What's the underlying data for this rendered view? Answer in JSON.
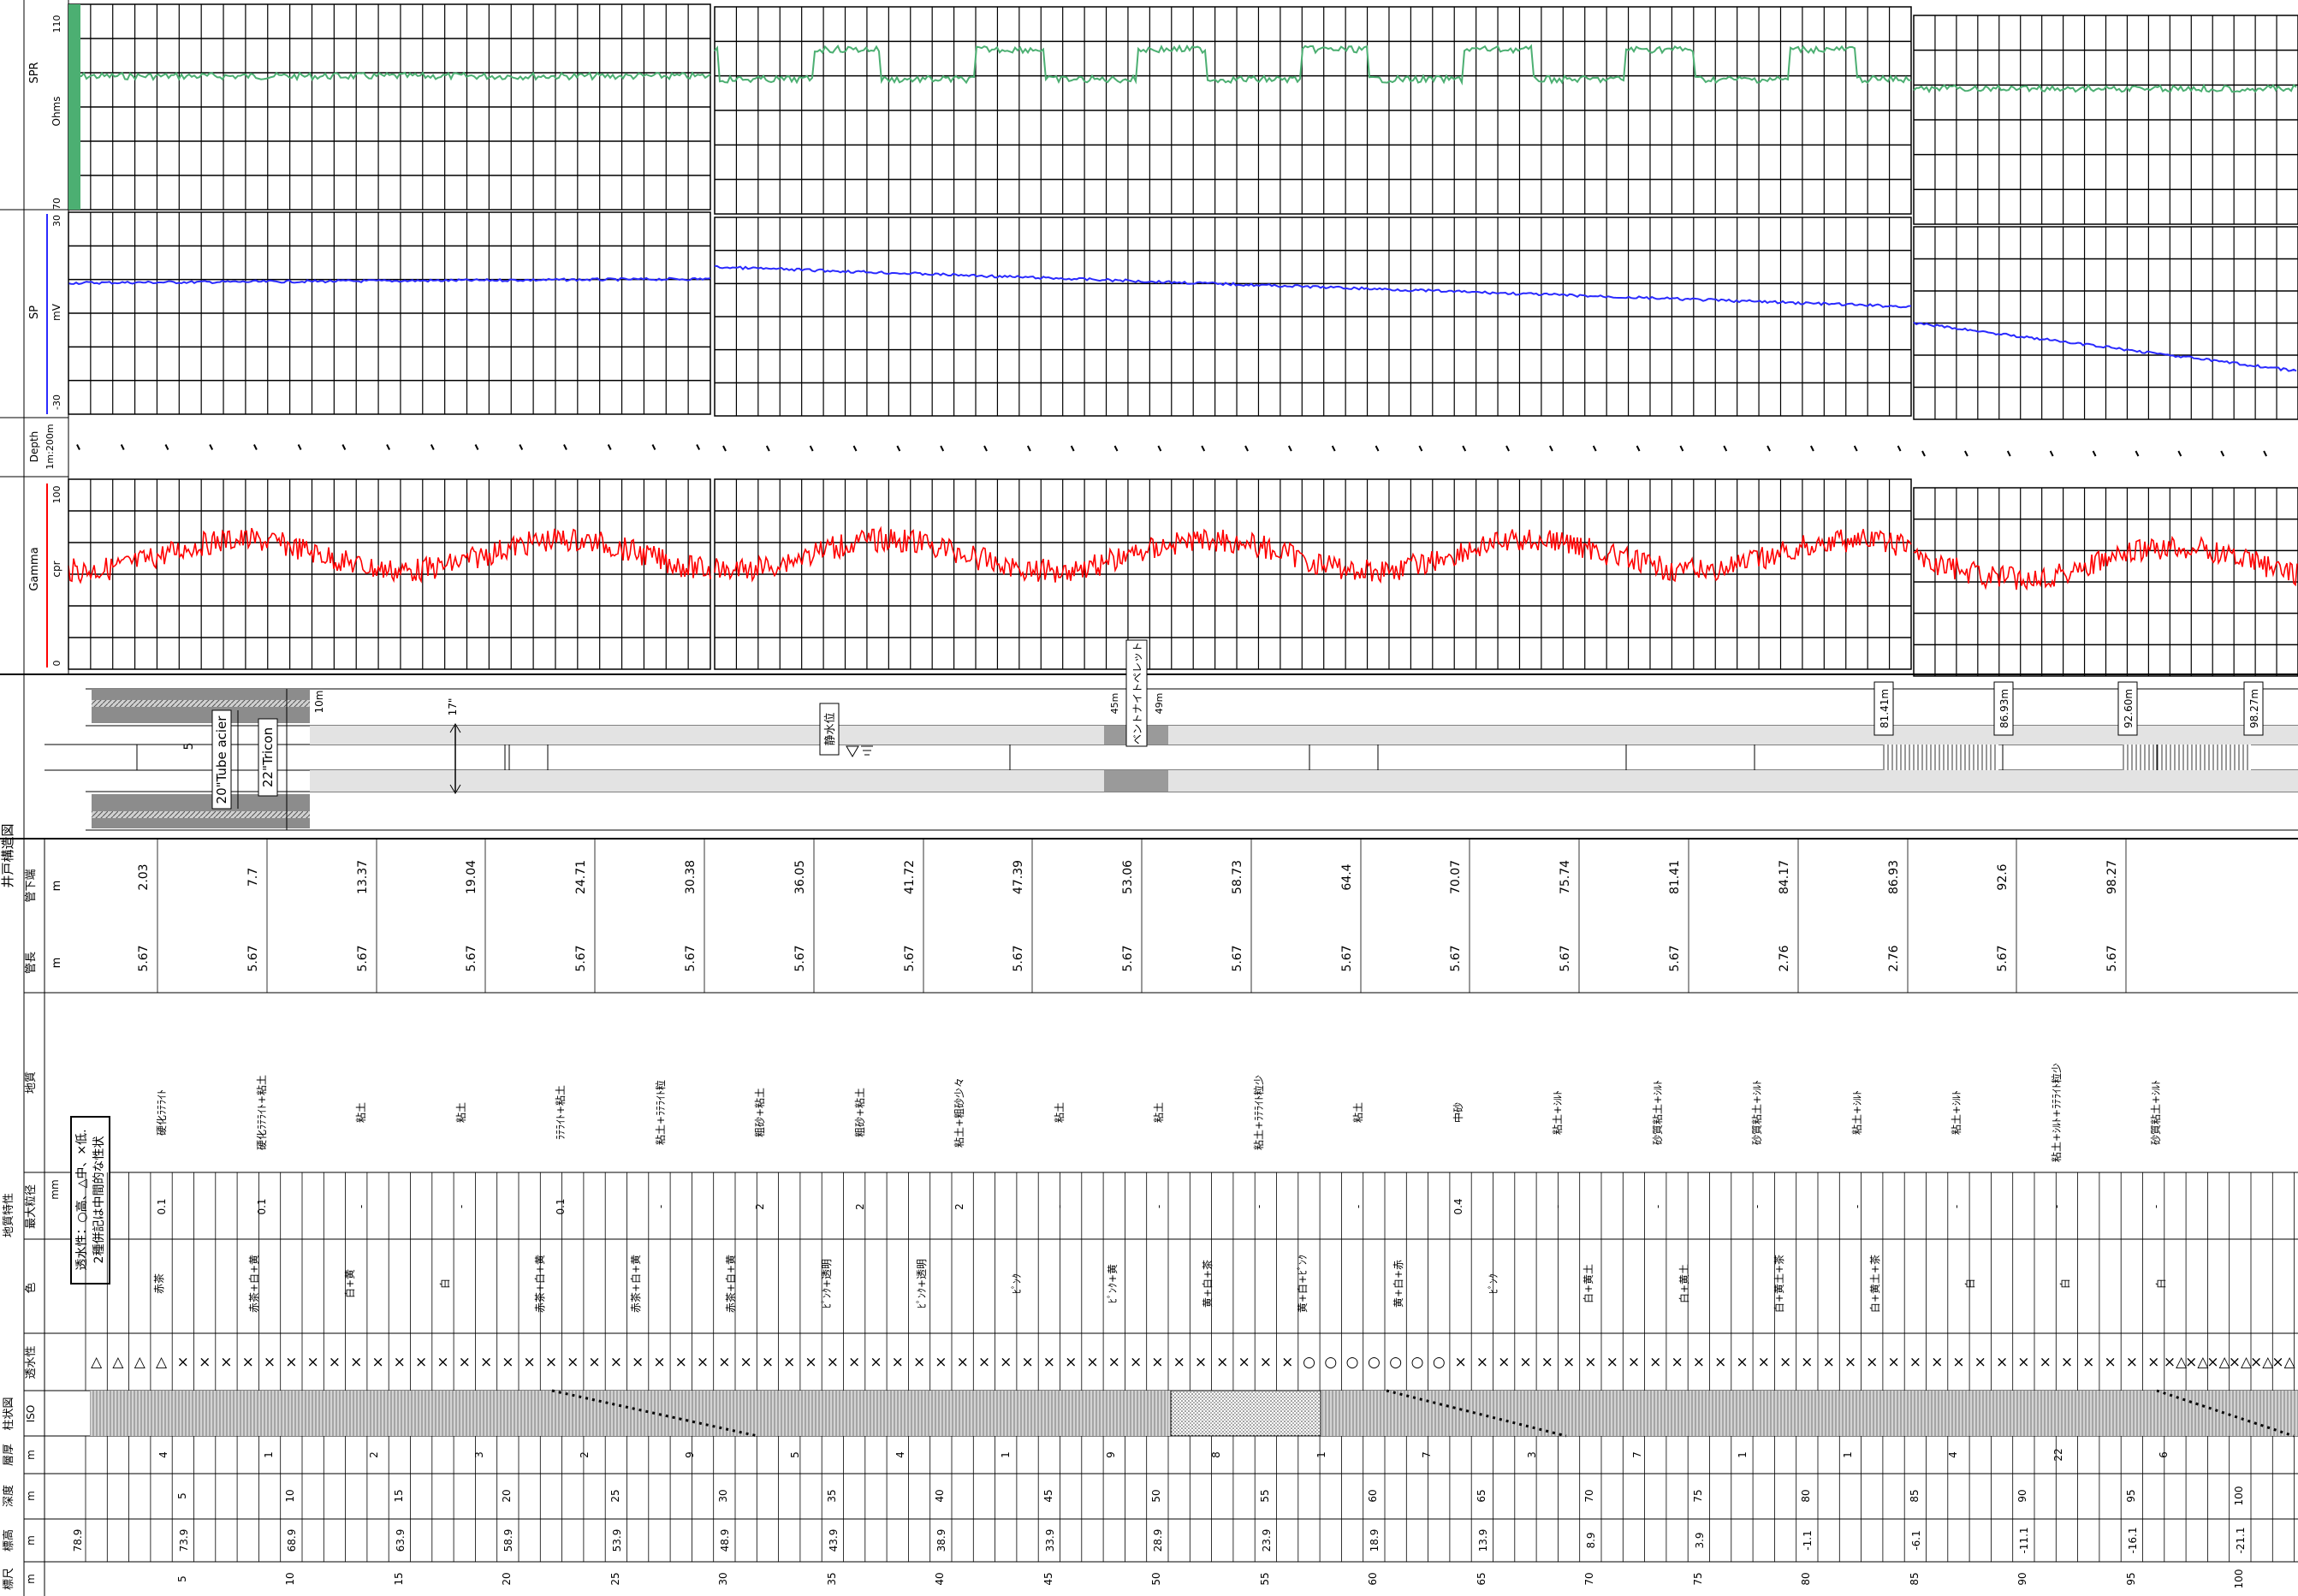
{
  "log": {
    "tracks": {
      "spr": {
        "name": "SPR",
        "unit": "Ohms",
        "max": "110",
        "min": "70"
      },
      "sp": {
        "name": "SP",
        "unit": "mV",
        "max": "30",
        "min": "-30"
      },
      "depth": {
        "name": "Depth",
        "unit": "1m:200m"
      },
      "gamma": {
        "name": "Gamma",
        "unit": "cpr",
        "max": "100",
        "min": "0"
      }
    },
    "well_structure_title": "井戸構造図",
    "table_titles": {
      "pipe_bottom": "管下端",
      "pipe_length": "管長",
      "geology_characteristics": "地質特性",
      "geology": "地質",
      "max_grain": "最大粒径",
      "color": "色",
      "permeability": "透水性",
      "column": "柱状図",
      "layer_thickness": "層厚",
      "depth": "深度",
      "elevation": "標高",
      "scale": "標尺"
    },
    "units": {
      "m": "m",
      "mm": "mm",
      "iso": "ISO"
    },
    "legend_box": [
      "透水性：○高、△中、×低.",
      "2種併記は中間的な性状"
    ],
    "structure_labels": {
      "casing": "20\"Tube acier",
      "bit": "22\"Tricon",
      "diameter": "17\"",
      "depth_10m": "10m",
      "five": "5",
      "static_water": "静水位",
      "bentonite": "ベントナイトペレット",
      "depth_45m": "45m",
      "depth_49m": "49m",
      "screens": [
        "81.41m",
        "86.93m",
        "92.60m",
        "98.27m"
      ]
    },
    "pipe_bottoms": [
      "2.03",
      "7.7",
      "13.37",
      "19.04",
      "24.71",
      "30.38",
      "36.05",
      "41.72",
      "47.39",
      "53.06",
      "58.73",
      "64.4",
      "70.07",
      "75.74",
      "81.41",
      "84.17",
      "86.93",
      "92.6",
      "98.27"
    ],
    "pipe_lengths": [
      "5.67",
      "5.67",
      "5.67",
      "5.67",
      "5.67",
      "5.67",
      "5.67",
      "5.67",
      "5.67",
      "5.67",
      "5.67",
      "5.67",
      "5.67",
      "5.67",
      "5.67",
      "2.76",
      "2.76",
      "5.67",
      "5.67"
    ],
    "geology_entries": [
      "硬化ﾗﾃﾗｲﾄ",
      "硬化ﾗﾃﾗｲﾄ+粘土",
      "粘土",
      "粘土",
      "ﾗﾃﾗｲﾄ+粘土",
      "粘土+ﾗﾃﾗｲﾄ粒",
      "粗砂+粘土",
      "粗砂+粘土",
      "粘土+粗砂少々",
      "粘土",
      "粘土",
      "粘土+ﾗﾃﾗｲﾄ粒少",
      "粘土",
      "中砂",
      "粘土+ｼﾙﾄ",
      "砂質粘土+ｼﾙﾄ",
      "砂質粘土+ｼﾙﾄ",
      "粘土+ｼﾙﾄ",
      "粘土+ｼﾙﾄ",
      "粘土+ｼﾙﾄ+ﾗﾃﾗｲﾄ粒少",
      "砂質粘土+ｼﾙﾄ"
    ],
    "grain_entries": [
      "0.1",
      "0.1",
      "-",
      "-",
      "0.1",
      "-",
      "2",
      "2",
      "2",
      "-",
      "-",
      "-",
      "-",
      "0.4",
      "-",
      "-",
      "-",
      "-",
      "-",
      "-",
      "-"
    ],
    "color_entries": [
      "赤茶",
      "赤茶+白+黄",
      "白+黄",
      "白",
      "赤茶+白+黄",
      "赤茶+白+黄",
      "赤茶+白+黄",
      "ﾋﾟﾝｸ+透明",
      "ﾋﾟﾝｸ+透明",
      "ﾋﾟﾝｸ",
      "ﾋﾟﾝｸ+黄",
      "黄+白+茶",
      "黄+白+ﾋﾟﾝｸ",
      "黄+白+赤",
      "ﾋﾟﾝｸ",
      "白+黄土",
      "白+黄土",
      "白+黄土+茶",
      "白+黄土+茶",
      "白",
      "白",
      "白"
    ],
    "perm_symbols": [
      "△",
      "△",
      "△",
      "△",
      "×",
      "○",
      "×△"
    ],
    "layer_thickness": [
      "4",
      "1",
      "2",
      "3",
      "2",
      "9",
      "5",
      "4",
      "1",
      "9",
      "8",
      "1",
      "7",
      "3",
      "7",
      "1",
      "1",
      "4",
      "22",
      "6"
    ],
    "depth_ticks": [
      "5",
      "10",
      "15",
      "20",
      "25",
      "30",
      "35",
      "40",
      "45",
      "50",
      "55",
      "60",
      "65",
      "70",
      "75",
      "80",
      "85",
      "90",
      "95",
      "100"
    ],
    "elevations": [
      "78.9",
      "73.9",
      "68.9",
      "63.9",
      "58.9",
      "53.9",
      "48.9",
      "43.9",
      "38.9",
      "33.9",
      "28.9",
      "23.9",
      "18.9",
      "13.9",
      "8.9",
      "3.9",
      "-1.1",
      "-6.1",
      "-11.1",
      "-16.1",
      "-21.1"
    ],
    "scale_ticks": [
      "5",
      "10",
      "15",
      "20",
      "25",
      "30",
      "35",
      "40",
      "45",
      "50",
      "55",
      "60",
      "65",
      "70",
      "75",
      "80",
      "85",
      "90",
      "95",
      "100"
    ]
  },
  "colors": {
    "spr": "#4caf72",
    "sp": "#2a2aff",
    "gamma": "#ff0000",
    "grid": "#000000",
    "casing": "#9a9a9a"
  }
}
